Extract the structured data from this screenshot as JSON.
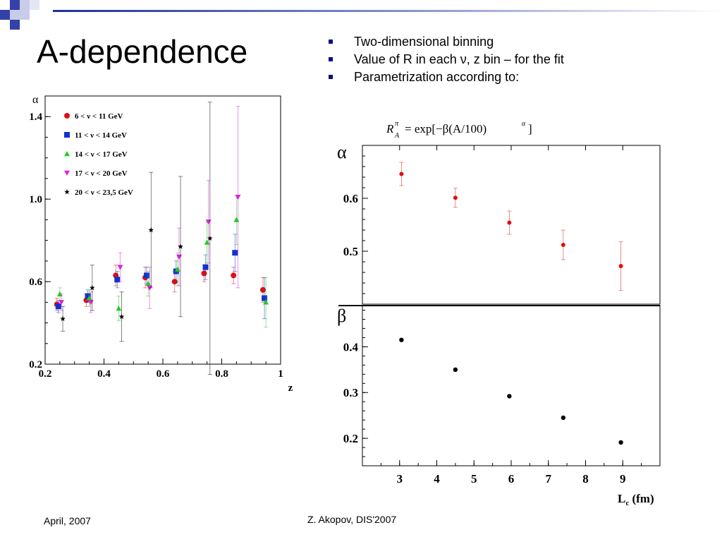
{
  "slide": {
    "title": "A-dependence",
    "bullets": [
      "Two-dimensional binning",
      "Value of R in each ν, z bin – for the fit",
      "Parametrization according to:"
    ],
    "formula": {
      "lhs_base": "R",
      "lhs_sup": "π",
      "lhs_sub": "A",
      "rhs": "= exp[−β(A/100)",
      "rhs_sup": "α",
      "rhs_close": "]"
    },
    "footer_left": "April, 2007",
    "footer_center": "Z. Akopov, DIS'2007",
    "accent_color": "#1f2f9c",
    "bullet_color": "#0a0a8c"
  },
  "chart_data": [
    {
      "type": "scatter",
      "ylabel": "α",
      "xlabel": "z",
      "xlim": [
        0.2,
        1.0
      ],
      "ylim": [
        0.2,
        1.5
      ],
      "xticks": [
        "0.2",
        "0.4",
        "0.6",
        "0.8",
        "1"
      ],
      "yticks": [
        "0.2",
        "0.6",
        "1.0",
        "1.4"
      ],
      "legend_position": "top-left",
      "series": [
        {
          "name": "6 < ν < 11 GeV",
          "color": "#dd1111",
          "marker": "circle",
          "points": [
            {
              "x": 0.24,
              "y": 0.49,
              "yerr": 0.03
            },
            {
              "x": 0.34,
              "y": 0.51,
              "yerr": 0.03
            },
            {
              "x": 0.44,
              "y": 0.63,
              "yerr": 0.05
            },
            {
              "x": 0.54,
              "y": 0.62,
              "yerr": 0.05
            },
            {
              "x": 0.64,
              "y": 0.6,
              "yerr": 0.05
            },
            {
              "x": 0.74,
              "y": 0.64,
              "yerr": 0.04
            },
            {
              "x": 0.84,
              "y": 0.63,
              "yerr": 0.04
            },
            {
              "x": 0.94,
              "y": 0.56,
              "yerr": 0.06
            }
          ]
        },
        {
          "name": "11 < ν < 14 GeV",
          "color": "#1133cc",
          "marker": "square",
          "points": [
            {
              "x": 0.245,
              "y": 0.48,
              "yerr": 0.03
            },
            {
              "x": 0.345,
              "y": 0.53,
              "yerr": 0.03
            },
            {
              "x": 0.445,
              "y": 0.61,
              "yerr": 0.04
            },
            {
              "x": 0.545,
              "y": 0.63,
              "yerr": 0.04
            },
            {
              "x": 0.645,
              "y": 0.65,
              "yerr": 0.05
            },
            {
              "x": 0.745,
              "y": 0.67,
              "yerr": 0.06
            },
            {
              "x": 0.845,
              "y": 0.74,
              "yerr": 0.09
            },
            {
              "x": 0.945,
              "y": 0.52,
              "yerr": 0.1
            }
          ]
        },
        {
          "name": "14 < ν < 17 GeV",
          "color": "#22cc22",
          "marker": "triangle-up",
          "points": [
            {
              "x": 0.25,
              "y": 0.54,
              "yerr": 0.03
            },
            {
              "x": 0.35,
              "y": 0.52,
              "yerr": 0.04
            },
            {
              "x": 0.45,
              "y": 0.47,
              "yerr": 0.06
            },
            {
              "x": 0.55,
              "y": 0.59,
              "yerr": 0.06
            },
            {
              "x": 0.65,
              "y": 0.66,
              "yerr": 0.08
            },
            {
              "x": 0.75,
              "y": 0.79,
              "yerr": 0.1
            },
            {
              "x": 0.85,
              "y": 0.9,
              "yerr": 0.12
            },
            {
              "x": 0.95,
              "y": 0.5,
              "yerr": 0.12
            }
          ]
        },
        {
          "name": "17 < ν < 20 GeV",
          "color": "#dd22dd",
          "marker": "triangle-down",
          "points": [
            {
              "x": 0.255,
              "y": 0.5,
              "yerr": 0.04
            },
            {
              "x": 0.355,
              "y": 0.5,
              "yerr": 0.05
            },
            {
              "x": 0.455,
              "y": 0.67,
              "yerr": 0.07
            },
            {
              "x": 0.555,
              "y": 0.57,
              "yerr": 0.1
            },
            {
              "x": 0.655,
              "y": 0.72,
              "yerr": 0.14
            },
            {
              "x": 0.755,
              "y": 0.89,
              "yerr": 0.2
            },
            {
              "x": 0.855,
              "y": 1.01,
              "yerr": 0.44
            }
          ]
        },
        {
          "name": "20 < ν < 23,5 GeV",
          "color": "#000000",
          "marker": "star",
          "points": [
            {
              "x": 0.26,
              "y": 0.42,
              "yerr": 0.06
            },
            {
              "x": 0.36,
              "y": 0.57,
              "yerr": 0.11
            },
            {
              "x": 0.46,
              "y": 0.43,
              "yerr": 0.12
            },
            {
              "x": 0.56,
              "y": 0.85,
              "yerr": 0.28
            },
            {
              "x": 0.66,
              "y": 0.77,
              "yerr": 0.34
            },
            {
              "x": 0.76,
              "y": 0.81,
              "yerr": 0.66
            }
          ]
        }
      ]
    },
    {
      "type": "scatter",
      "ylabel": "α",
      "xlim": [
        2.0,
        10.0
      ],
      "ylim": [
        0.4,
        0.7
      ],
      "yticks": [
        "0.5",
        "0.6"
      ],
      "marker_color": "#dd1111",
      "points": [
        {
          "x": 3.05,
          "y": 0.646,
          "yerr": 0.022
        },
        {
          "x": 4.5,
          "y": 0.601,
          "yerr": 0.018
        },
        {
          "x": 5.95,
          "y": 0.554,
          "yerr": 0.022
        },
        {
          "x": 7.4,
          "y": 0.512,
          "yerr": 0.028
        },
        {
          "x": 8.95,
          "y": 0.472,
          "yerr": 0.046
        }
      ]
    },
    {
      "type": "scatter",
      "ylabel": "β",
      "xlabel": "L",
      "xlabel_sub": "c",
      "xlabel_unit": "(fm)",
      "xlim": [
        2.0,
        10.0
      ],
      "ylim": [
        0.14,
        0.49
      ],
      "xticks": [
        "3",
        "4",
        "5",
        "6",
        "7",
        "8",
        "9"
      ],
      "yticks": [
        "0.2",
        "0.3",
        "0.4"
      ],
      "marker_color": "#000000",
      "points": [
        {
          "x": 3.05,
          "y": 0.415
        },
        {
          "x": 4.5,
          "y": 0.35
        },
        {
          "x": 5.95,
          "y": 0.292
        },
        {
          "x": 7.4,
          "y": 0.245
        },
        {
          "x": 8.95,
          "y": 0.191
        }
      ]
    }
  ]
}
